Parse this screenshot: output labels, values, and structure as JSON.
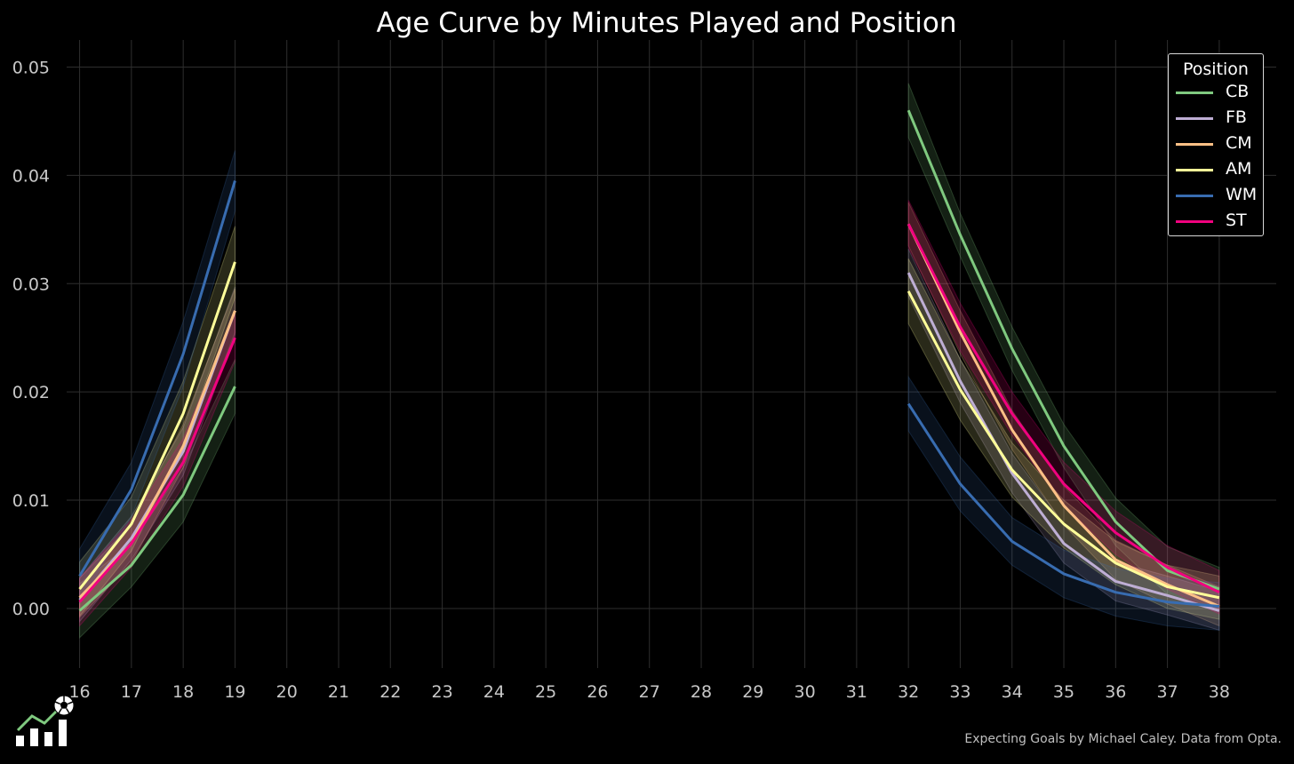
{
  "chart_data": {
    "type": "line",
    "title": "Age Curve by Minutes Played and Position",
    "xlabel": "",
    "ylabel": "",
    "x": [
      16,
      17,
      18,
      19,
      32,
      33,
      34,
      35,
      36,
      37,
      38
    ],
    "x_ticks": [
      16,
      17,
      18,
      19,
      20,
      21,
      22,
      23,
      24,
      25,
      26,
      27,
      28,
      29,
      30,
      31,
      32,
      33,
      34,
      35,
      36,
      37,
      38
    ],
    "y_ticks": [
      "0.00",
      "0.01",
      "0.02",
      "0.03",
      "0.04",
      "0.05"
    ],
    "xlim": [
      15.75,
      39.1
    ],
    "ylim": [
      -0.0055,
      0.0525
    ],
    "grid": true,
    "legend": {
      "title": "Position",
      "placement": "top-right"
    },
    "segments": [
      [
        16,
        17,
        18,
        19
      ],
      [
        32,
        33,
        34,
        35,
        36,
        37,
        38
      ]
    ],
    "series": [
      {
        "name": "CB",
        "color": "#7fc97f",
        "values": [
          -0.0002,
          0.004,
          0.0105,
          0.0205,
          0.046,
          0.0345,
          0.024,
          0.015,
          0.008,
          0.0035,
          0.0018
        ],
        "band": [
          0.0025,
          0.002,
          0.0025,
          0.0025,
          0.0025,
          0.002,
          0.002,
          0.002,
          0.0022,
          0.0022,
          0.002
        ]
      },
      {
        "name": "FB",
        "color": "#beaed4",
        "values": [
          0.0008,
          0.0065,
          0.0145,
          0.0275,
          0.031,
          0.021,
          0.0125,
          0.006,
          0.0025,
          0.0012,
          -0.0002
        ],
        "band": [
          0.002,
          0.002,
          0.0022,
          0.0022,
          0.0022,
          0.002,
          0.0018,
          0.0018,
          0.0018,
          0.0018,
          0.0018
        ]
      },
      {
        "name": "CM",
        "color": "#fdc086",
        "values": [
          0.001,
          0.006,
          0.015,
          0.0275,
          0.0355,
          0.0255,
          0.0165,
          0.0095,
          0.0045,
          0.0022,
          0.0002
        ],
        "band": [
          0.0018,
          0.0018,
          0.002,
          0.002,
          0.002,
          0.002,
          0.0018,
          0.0018,
          0.0018,
          0.0018,
          0.0018
        ]
      },
      {
        "name": "AM",
        "color": "#ffff99",
        "values": [
          0.0018,
          0.0078,
          0.018,
          0.032,
          0.0293,
          0.0202,
          0.0128,
          0.0078,
          0.0042,
          0.002,
          0.001
        ],
        "band": [
          0.0025,
          0.0025,
          0.003,
          0.0033,
          0.003,
          0.0028,
          0.0025,
          0.0022,
          0.002,
          0.002,
          0.002
        ]
      },
      {
        "name": "WM",
        "color": "#386cb0",
        "values": [
          0.003,
          0.011,
          0.0235,
          0.0395,
          0.0189,
          0.0115,
          0.0062,
          0.0032,
          0.0015,
          0.0006,
          0.0002
        ],
        "band": [
          0.0025,
          0.0025,
          0.003,
          0.0028,
          0.0025,
          0.0025,
          0.0022,
          0.0022,
          0.0022,
          0.0022,
          0.0022
        ]
      },
      {
        "name": "ST",
        "color": "#f0027f",
        "values": [
          0.0006,
          0.006,
          0.0135,
          0.025,
          0.0355,
          0.026,
          0.018,
          0.0115,
          0.007,
          0.0038,
          0.0015
        ],
        "band": [
          0.0022,
          0.0022,
          0.0022,
          0.0022,
          0.0022,
          0.0022,
          0.002,
          0.002,
          0.002,
          0.002,
          0.002
        ]
      }
    ]
  },
  "footer": {
    "credit": "Expecting Goals by Michael Caley. Data from Opta."
  },
  "logo": {
    "icon": "soccer-chart-logo-icon"
  }
}
